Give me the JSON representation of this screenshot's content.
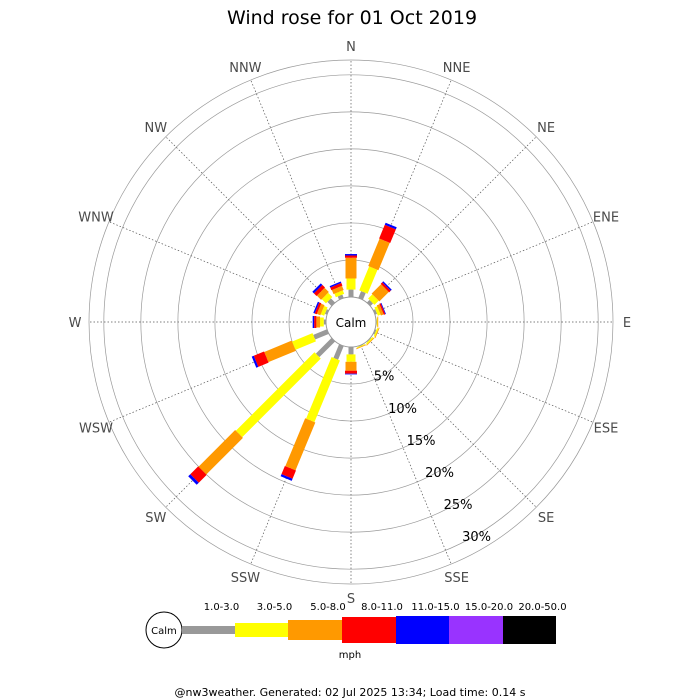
{
  "chart_data": {
    "type": "wind-rose",
    "title": "Wind rose for 01 Oct 2019",
    "directions": [
      "N",
      "NNE",
      "NE",
      "ENE",
      "E",
      "ESE",
      "SE",
      "SSE",
      "S",
      "SSW",
      "SW",
      "WSW",
      "W",
      "WNW",
      "NW",
      "NNW"
    ],
    "radial_ticks": [
      5,
      10,
      15,
      20,
      25,
      30
    ],
    "radial_tick_labels": [
      "5%",
      "10%",
      "15%",
      "20%",
      "25%",
      "30%"
    ],
    "radial_max": 32,
    "calm_label": "Calm",
    "speed_unit": "mph",
    "speed_bins": [
      {
        "label": "1.0-3.0",
        "color": "#999999"
      },
      {
        "label": "3.0-5.0",
        "color": "#ffff00"
      },
      {
        "label": "5.0-8.0",
        "color": "#ff9900"
      },
      {
        "label": "8.0-11.0",
        "color": "#ff0000"
      },
      {
        "label": "11.0-15.0",
        "color": "#0000ff"
      },
      {
        "label": "15.0-20.0",
        "color": "#9933ff"
      },
      {
        "label": "20.0-50.0",
        "color": "#000000"
      }
    ],
    "series": [
      {
        "direction": "N",
        "values": [
          1.0,
          1.5,
          2.8,
          0.3,
          0.2,
          0,
          0
        ]
      },
      {
        "direction": "NNE",
        "values": [
          1.0,
          3.5,
          4.0,
          2.0,
          0.3,
          0,
          0
        ]
      },
      {
        "direction": "NE",
        "values": [
          0.5,
          0.8,
          1.8,
          0.3,
          0.2,
          0,
          0
        ]
      },
      {
        "direction": "ENE",
        "values": [
          0.3,
          0.4,
          0.4,
          0.2,
          0.1,
          0,
          0
        ]
      },
      {
        "direction": "E",
        "values": [
          0.1,
          0.1,
          0.1,
          0,
          0,
          0,
          0
        ]
      },
      {
        "direction": "ESE",
        "values": [
          0.2,
          0.2,
          0.1,
          0,
          0,
          0,
          0
        ]
      },
      {
        "direction": "SE",
        "values": [
          0.1,
          0.2,
          0.1,
          0,
          0,
          0,
          0
        ]
      },
      {
        "direction": "SSE",
        "values": [
          0.1,
          0.1,
          0.1,
          0,
          0,
          0,
          0
        ]
      },
      {
        "direction": "S",
        "values": [
          1.0,
          1.0,
          1.2,
          0.4,
          0.1,
          0,
          0
        ]
      },
      {
        "direction": "SSW",
        "values": [
          2.0,
          9.0,
          7.0,
          1.2,
          0.3,
          0,
          0
        ]
      },
      {
        "direction": "SW",
        "values": [
          3.0,
          15.0,
          7.0,
          1.5,
          0.4,
          0,
          0
        ]
      },
      {
        "direction": "WSW",
        "values": [
          2.0,
          3.0,
          4.0,
          1.5,
          0.3,
          0,
          0
        ]
      },
      {
        "direction": "W",
        "values": [
          0.3,
          0.5,
          0.5,
          0.3,
          0.2,
          0,
          0
        ]
      },
      {
        "direction": "WNW",
        "values": [
          0.3,
          0.5,
          0.5,
          0.3,
          0.2,
          0,
          0
        ]
      },
      {
        "direction": "NW",
        "values": [
          0.8,
          0.8,
          0.8,
          0.5,
          0.3,
          0,
          0
        ]
      },
      {
        "direction": "NNW",
        "values": [
          0.5,
          0.5,
          0.6,
          0.4,
          0.2,
          0,
          0
        ]
      }
    ]
  },
  "footer": "@nw3weather. Generated: 02 Jul 2025 13:34; Load time: 0.14 s"
}
